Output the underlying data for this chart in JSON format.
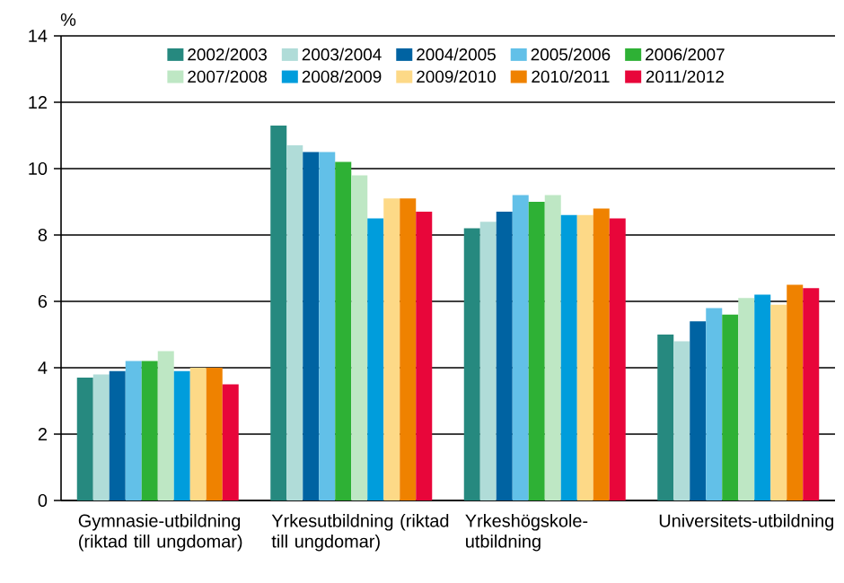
{
  "chart_data": {
    "type": "bar",
    "ylabel": "%",
    "categories": [
      "Gymnasie-utbildning (riktad till ungdomar)",
      "Yrkesutbildning (riktad till ungdomar)",
      "Yrkeshögskole-utbildning",
      "Universitets-utbildning"
    ],
    "series": [
      {
        "name": "2002/2003",
        "color": "#26897f",
        "values": [
          3.7,
          11.3,
          8.2,
          5.0
        ]
      },
      {
        "name": "2003/2004",
        "color": "#b0dcd8",
        "values": [
          3.8,
          10.7,
          8.4,
          4.8
        ]
      },
      {
        "name": "2004/2005",
        "color": "#0063a2",
        "values": [
          3.9,
          10.5,
          8.7,
          5.4
        ]
      },
      {
        "name": "2005/2006",
        "color": "#62c0e8",
        "values": [
          4.2,
          10.5,
          9.2,
          5.8
        ]
      },
      {
        "name": "2006/2007",
        "color": "#2eb135",
        "values": [
          4.2,
          10.2,
          9.0,
          5.6
        ]
      },
      {
        "name": "2007/2008",
        "color": "#bee7c4",
        "values": [
          4.5,
          9.8,
          9.2,
          6.1
        ]
      },
      {
        "name": "2008/2009",
        "color": "#009ddc",
        "values": [
          3.9,
          8.5,
          8.6,
          6.2
        ]
      },
      {
        "name": "2009/2010",
        "color": "#fdd987",
        "values": [
          4.0,
          9.1,
          8.6,
          5.9
        ]
      },
      {
        "name": "2010/2011",
        "color": "#ef8200",
        "values": [
          4.0,
          9.1,
          8.8,
          6.5
        ]
      },
      {
        "name": "2011/2012",
        "color": "#e8063a",
        "values": [
          3.5,
          8.7,
          8.5,
          6.4
        ]
      }
    ],
    "ylim": [
      0,
      14
    ],
    "yticks": [
      0,
      2,
      4,
      6,
      8,
      10,
      12,
      14
    ],
    "grid": "y",
    "legend": "top"
  }
}
